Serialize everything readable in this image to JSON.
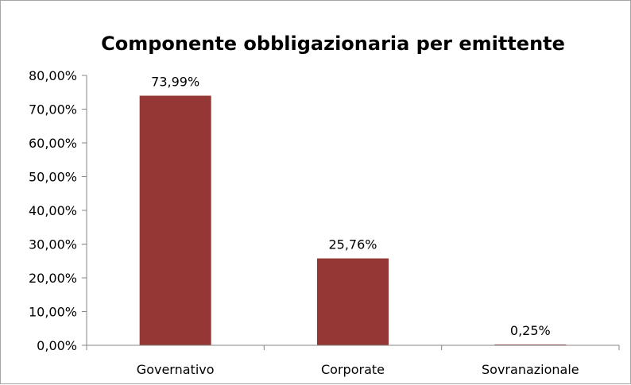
{
  "chart_data": {
    "type": "bar",
    "title": "Componente obbligazionaria per emittente",
    "categories": [
      "Governativo",
      "Corporate",
      "Sovranazionale"
    ],
    "values": [
      73.99,
      25.76,
      0.25
    ],
    "data_labels": [
      "73,99%",
      "25,76%",
      "0,25%"
    ],
    "y_ticks": [
      0,
      10,
      20,
      30,
      40,
      50,
      60,
      70,
      80
    ],
    "y_tick_labels": [
      "0,00%",
      "10,00%",
      "20,00%",
      "30,00%",
      "40,00%",
      "50,00%",
      "60,00%",
      "70,00%",
      "80,00%"
    ],
    "ylim": [
      0,
      80
    ],
    "xlabel": "",
    "ylabel": "",
    "grid": false,
    "legend": "none",
    "bar_color": "#953735"
  }
}
